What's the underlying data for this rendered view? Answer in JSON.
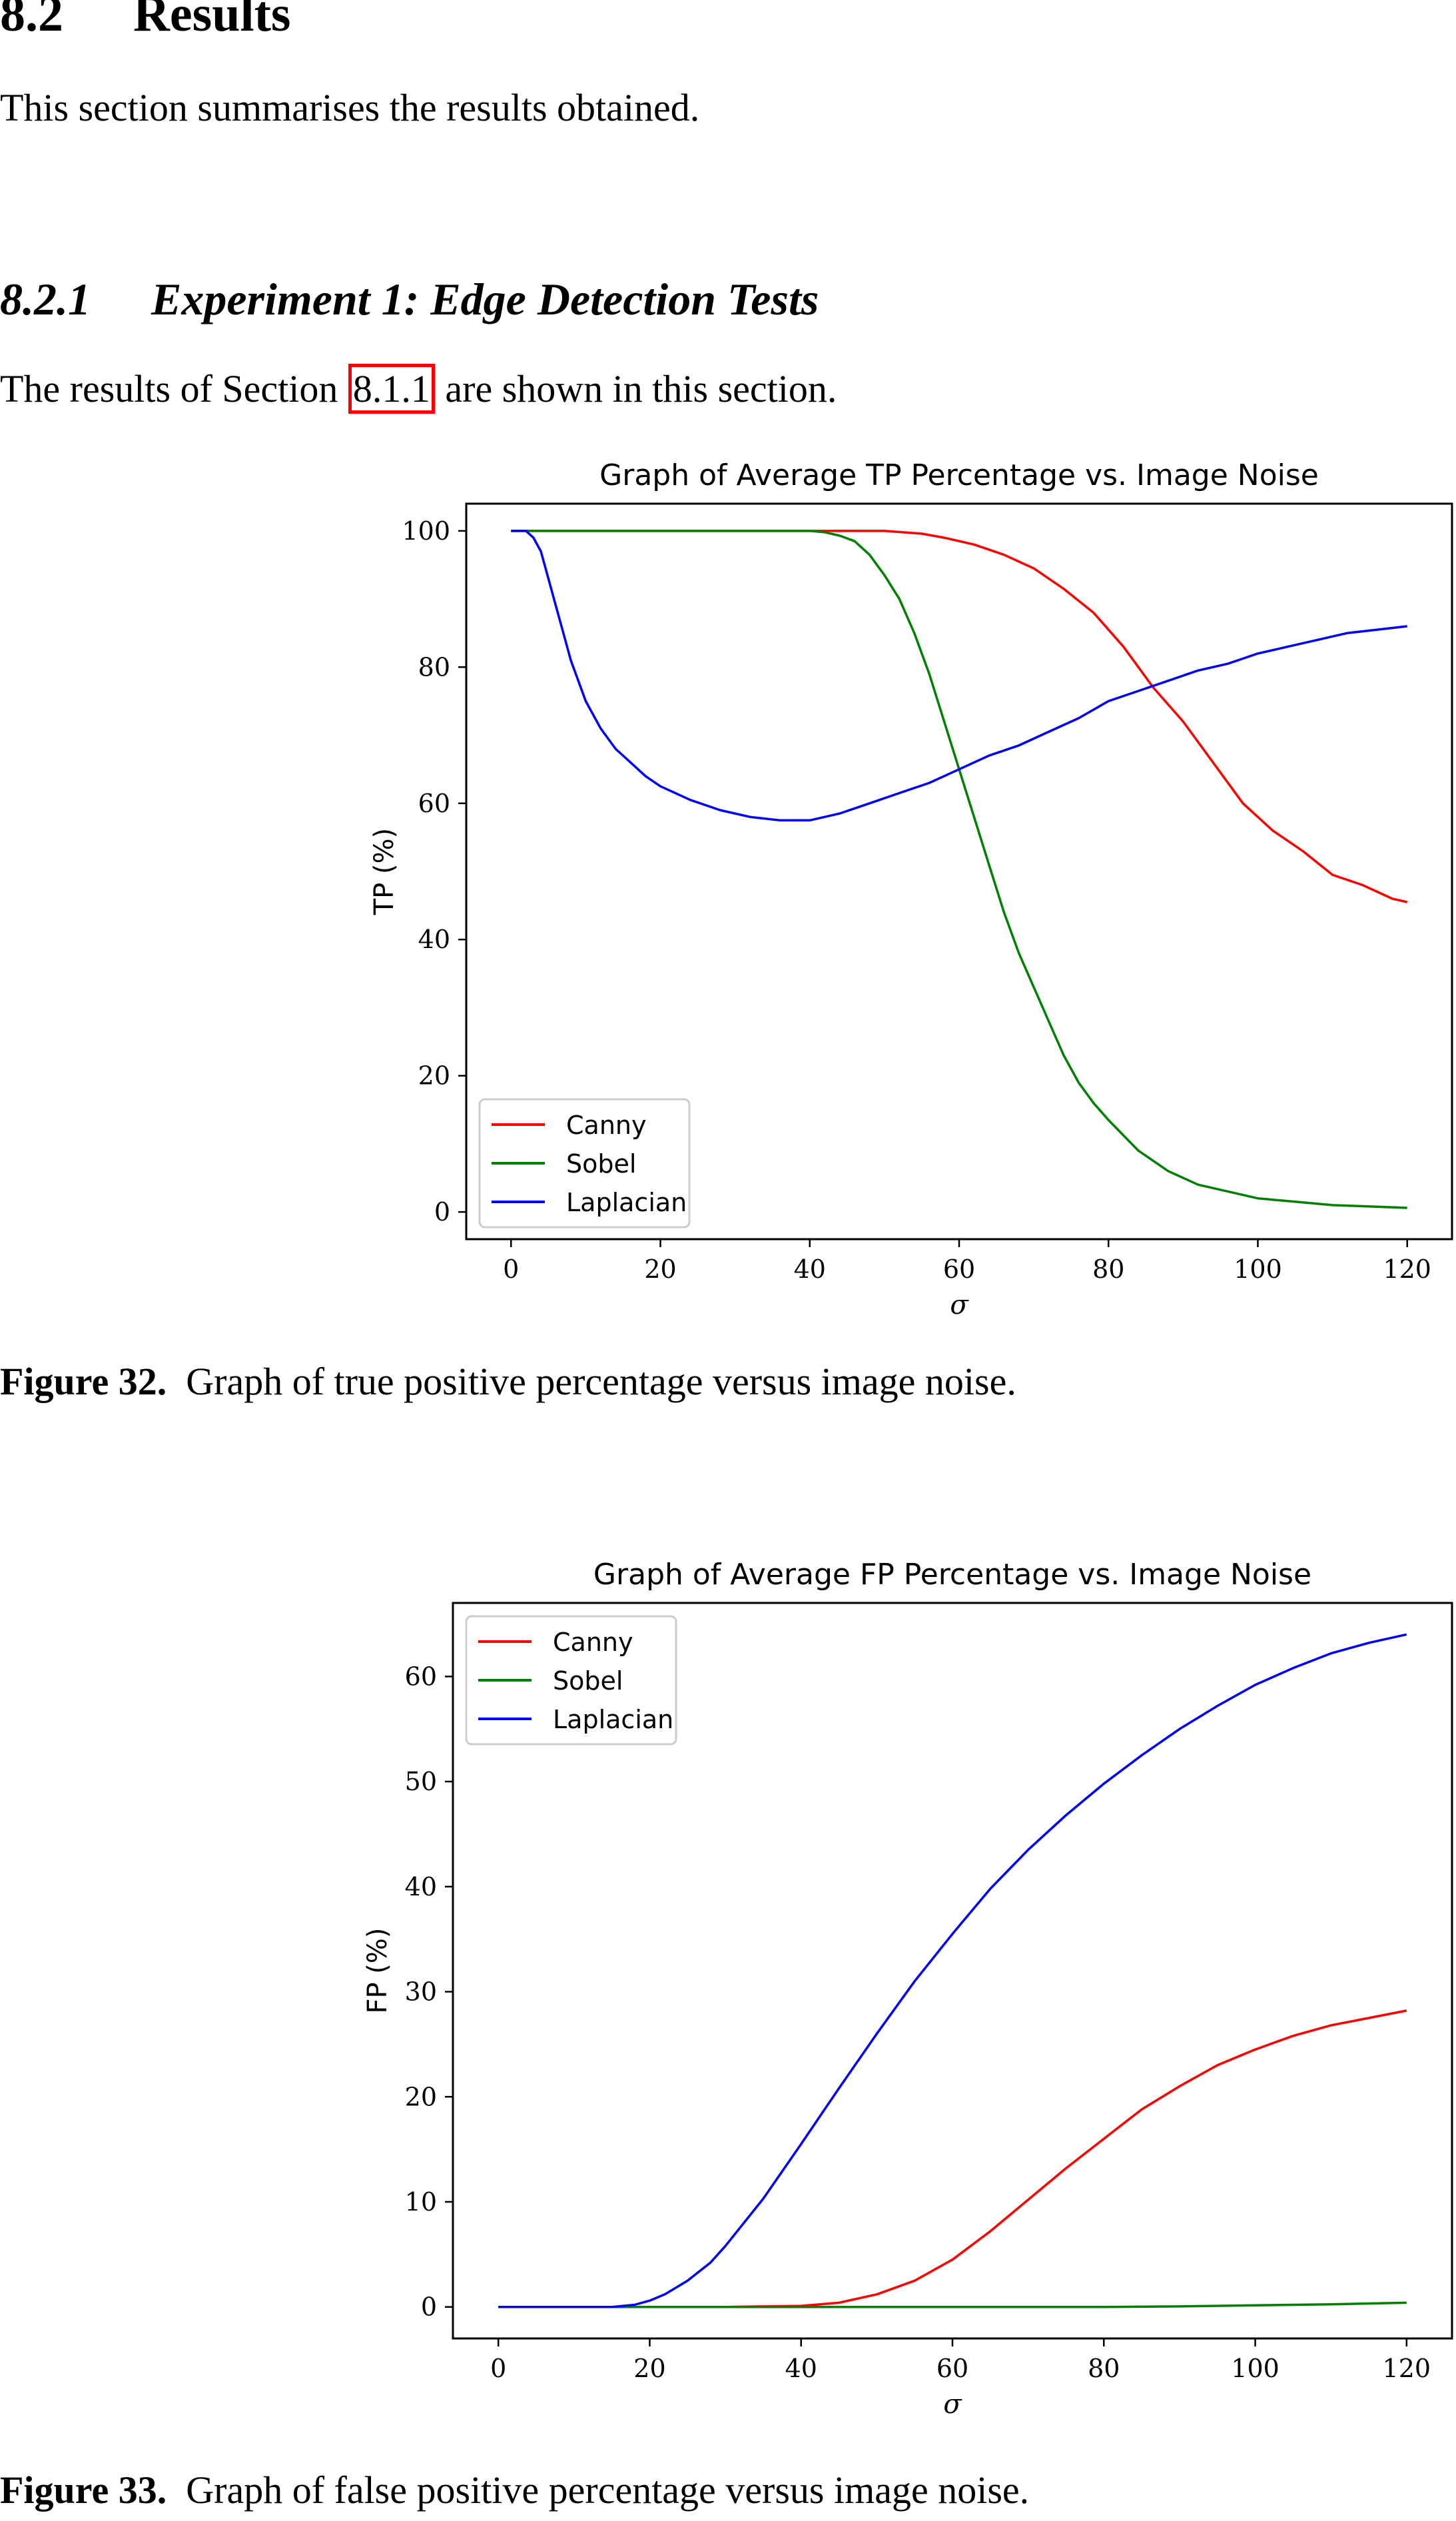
{
  "section": {
    "number": "8.2",
    "title": "Results",
    "intro": "This section summarises the results obtained."
  },
  "subsection": {
    "number": "8.2.1",
    "title": "Experiment 1: Edge Detection Tests",
    "text_before": "The results of Section ",
    "ref": "8.1.1",
    "text_after": " are shown in this section."
  },
  "figures": [
    {
      "label": "Figure 32.",
      "caption": "  Graph of true positive percentage versus image noise."
    },
    {
      "label": "Figure 33.",
      "caption": "  Graph of false positive percentage versus image noise."
    }
  ],
  "colors": {
    "canny": "#ff0000",
    "sobel": "#008000",
    "laplacian": "#0000ff"
  },
  "chart_data": [
    {
      "type": "line",
      "title": "Graph of Average TP Percentage vs. Image Noise",
      "xlabel": "σ",
      "ylabel": "TP (%)",
      "xlim": [
        -6,
        126
      ],
      "ylim": [
        -4,
        104
      ],
      "xticks": [
        0,
        20,
        40,
        60,
        80,
        100,
        120
      ],
      "yticks": [
        0,
        20,
        40,
        60,
        80,
        100
      ],
      "legend": "lower-left",
      "series": [
        {
          "name": "Canny",
          "color": "#ff0000",
          "x": [
            0,
            10,
            20,
            30,
            40,
            45,
            50,
            55,
            58,
            62,
            66,
            70,
            74,
            78,
            82,
            86,
            90,
            94,
            98,
            102,
            106,
            110,
            114,
            118,
            120
          ],
          "y": [
            100,
            100,
            100,
            100,
            100,
            100,
            100,
            99.6,
            99,
            98,
            96.5,
            94.5,
            91.5,
            88,
            83,
            77,
            72,
            66,
            60,
            56,
            53,
            49.5,
            48,
            46,
            45.5
          ]
        },
        {
          "name": "Sobel",
          "color": "#008000",
          "x": [
            0,
            10,
            20,
            30,
            40,
            42,
            44,
            46,
            48,
            50,
            52,
            54,
            56,
            58,
            60,
            62,
            64,
            66,
            68,
            70,
            72,
            74,
            76,
            78,
            80,
            84,
            88,
            92,
            96,
            100,
            105,
            110,
            115,
            120
          ],
          "y": [
            100,
            100,
            100,
            100,
            100,
            99.8,
            99.3,
            98.5,
            96.5,
            93.5,
            90,
            85,
            79,
            72,
            65,
            58,
            51,
            44,
            38,
            33,
            28,
            23,
            19,
            16,
            13.5,
            9,
            6,
            4,
            3,
            2,
            1.5,
            1,
            0.8,
            0.6
          ]
        },
        {
          "name": "Laplacian",
          "color": "#0000ff",
          "x": [
            0,
            2,
            3,
            4,
            5,
            6,
            7,
            8,
            10,
            12,
            14,
            16,
            18,
            20,
            24,
            28,
            32,
            36,
            40,
            44,
            48,
            52,
            56,
            60,
            64,
            68,
            72,
            76,
            80,
            84,
            88,
            92,
            96,
            100,
            104,
            108,
            112,
            116,
            120
          ],
          "y": [
            100,
            100,
            99,
            97,
            93,
            89,
            85,
            81,
            75,
            71,
            68,
            66,
            64,
            62.5,
            60.5,
            59,
            58,
            57.5,
            57.5,
            58.5,
            60,
            61.5,
            63,
            65,
            67,
            68.5,
            70.5,
            72.5,
            75,
            76.5,
            78,
            79.5,
            80.5,
            82,
            83,
            84,
            85,
            85.5,
            86
          ]
        }
      ]
    },
    {
      "type": "line",
      "title": "Graph of Average FP Percentage vs. Image Noise",
      "xlabel": "σ",
      "ylabel": "FP (%)",
      "xlim": [
        -6,
        126
      ],
      "ylim": [
        -3,
        67
      ],
      "xticks": [
        0,
        20,
        40,
        60,
        80,
        100,
        120
      ],
      "yticks": [
        0,
        10,
        20,
        30,
        40,
        50,
        60
      ],
      "legend": "upper-left",
      "series": [
        {
          "name": "Canny",
          "color": "#ff0000",
          "x": [
            0,
            30,
            40,
            45,
            50,
            55,
            60,
            65,
            70,
            75,
            80,
            85,
            90,
            95,
            100,
            105,
            110,
            115,
            120
          ],
          "y": [
            0,
            0,
            0.1,
            0.4,
            1.2,
            2.5,
            4.5,
            7.2,
            10.2,
            13.2,
            16,
            18.8,
            21,
            23,
            24.5,
            25.8,
            26.8,
            27.5,
            28.2
          ]
        },
        {
          "name": "Sobel",
          "color": "#008000",
          "x": [
            0,
            40,
            60,
            80,
            90,
            100,
            110,
            120
          ],
          "y": [
            0,
            0,
            0,
            0,
            0.05,
            0.15,
            0.25,
            0.4
          ]
        },
        {
          "name": "Laplacian",
          "color": "#0000ff",
          "x": [
            0,
            15,
            18,
            20,
            22,
            25,
            28,
            30,
            35,
            40,
            45,
            50,
            55,
            60,
            65,
            70,
            75,
            80,
            85,
            90,
            95,
            100,
            105,
            110,
            115,
            120
          ],
          "y": [
            0,
            0,
            0.2,
            0.6,
            1.2,
            2.5,
            4.2,
            5.8,
            10.3,
            15.5,
            20.8,
            26,
            31,
            35.5,
            39.8,
            43.5,
            46.8,
            49.8,
            52.5,
            55,
            57.2,
            59.2,
            60.8,
            62.2,
            63.2,
            64
          ]
        }
      ]
    }
  ]
}
